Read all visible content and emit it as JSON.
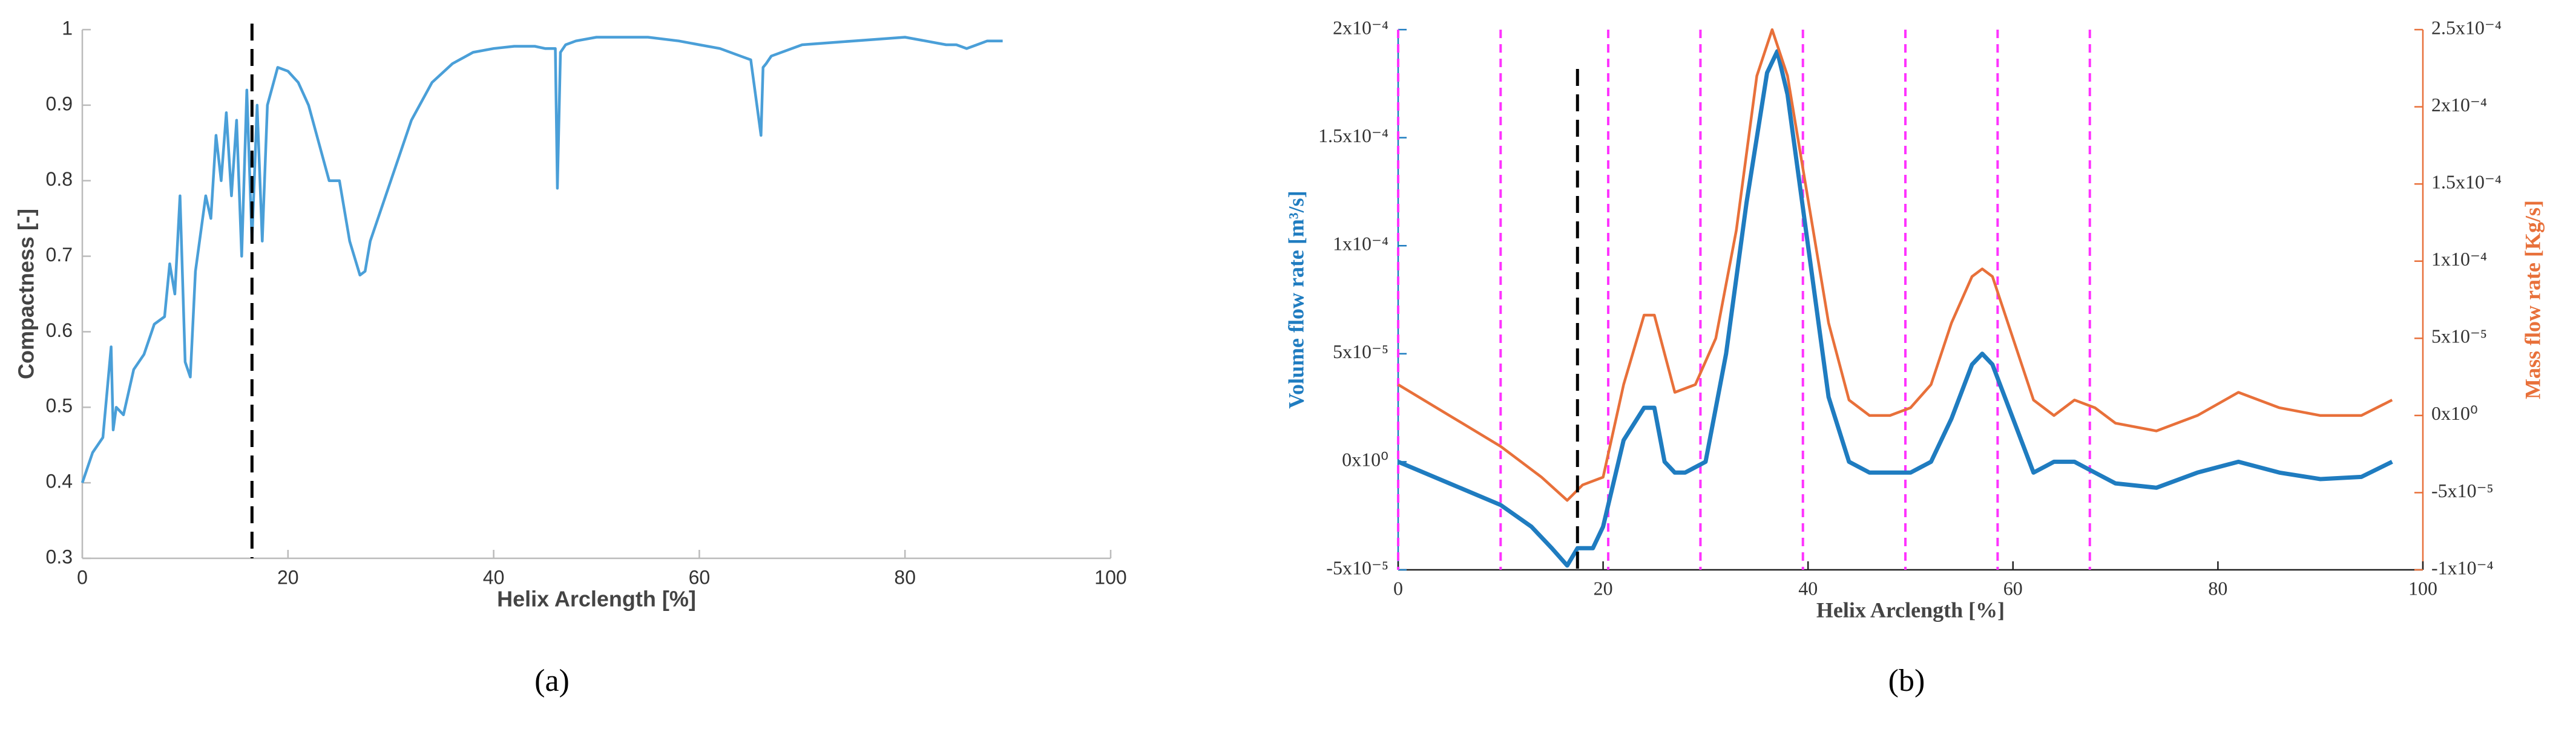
{
  "chart_data": [
    {
      "type": "line",
      "caption": "(a)",
      "xlabel": "Helix Arclength [%]",
      "ylabel": "Compactness [-]",
      "xlim": [
        0,
        100
      ],
      "xticks": [
        0,
        20,
        40,
        60,
        80,
        100
      ],
      "ylim": [
        0.3,
        1
      ],
      "yticks": [
        0.3,
        0.4,
        0.5,
        0.6,
        0.7,
        0.8,
        0.9,
        1
      ],
      "marker_line": 16.5,
      "marker_color": "#000000",
      "series": [
        {
          "color": "#4a9fd8",
          "x": [
            0,
            0.5,
            1,
            2,
            2.8,
            3,
            3.3,
            4,
            5,
            6,
            7,
            8,
            8.5,
            9,
            9.5,
            10,
            10.5,
            11,
            12,
            12.5,
            13,
            13.5,
            14,
            14.5,
            15,
            15.5,
            16,
            16.5,
            17,
            17.5,
            18,
            19,
            20,
            21,
            22,
            23,
            24,
            25,
            26,
            27,
            27.5,
            28,
            29,
            30,
            32,
            34,
            36,
            38,
            40,
            42,
            44,
            45,
            46,
            46.2,
            46.5,
            47,
            48,
            50,
            52,
            55,
            58,
            60,
            62,
            64,
            65,
            66,
            66.2,
            66.5,
            67,
            70,
            75,
            80,
            82,
            84,
            85,
            86,
            87,
            88,
            89.5
          ],
          "values": [
            0.4,
            0.42,
            0.44,
            0.46,
            0.58,
            0.47,
            0.5,
            0.49,
            0.55,
            0.57,
            0.61,
            0.62,
            0.69,
            0.65,
            0.78,
            0.56,
            0.54,
            0.68,
            0.78,
            0.75,
            0.86,
            0.8,
            0.89,
            0.78,
            0.88,
            0.7,
            0.92,
            0.72,
            0.9,
            0.72,
            0.9,
            0.95,
            0.945,
            0.93,
            0.9,
            0.85,
            0.8,
            0.8,
            0.72,
            0.675,
            0.68,
            0.72,
            0.76,
            0.8,
            0.88,
            0.93,
            0.955,
            0.97,
            0.975,
            0.978,
            0.978,
            0.975,
            0.975,
            0.79,
            0.97,
            0.98,
            0.985,
            0.99,
            0.99,
            0.99,
            0.985,
            0.98,
            0.975,
            0.965,
            0.96,
            0.86,
            0.95,
            0.955,
            0.965,
            0.98,
            0.985,
            0.99,
            0.985,
            0.98,
            0.98,
            0.975,
            0.98,
            0.985,
            0.985
          ]
        }
      ]
    },
    {
      "type": "line",
      "caption": "(b)",
      "xlabel": "Helix Arclength [%]",
      "ylabel": "Volume flow rate [m³/s]",
      "y2label": "Mass flow rate [Kg/s]",
      "xlim": [
        0,
        100
      ],
      "xticks": [
        0,
        20,
        40,
        60,
        80,
        100
      ],
      "ylim": [
        -5e-05,
        0.0002
      ],
      "yticks": [
        {
          "value": -5e-05,
          "label": "-5x10⁻⁵"
        },
        {
          "value": 0,
          "label": "0x10⁰"
        },
        {
          "value": 5e-05,
          "label": "5x10⁻⁵"
        },
        {
          "value": 0.0001,
          "label": "1x10⁻⁴"
        },
        {
          "value": 0.00015,
          "label": "1.5x10⁻⁴"
        },
        {
          "value": 0.0002,
          "label": "2x10⁻⁴"
        }
      ],
      "y2lim": [
        -0.0001,
        0.00025
      ],
      "y2ticks": [
        {
          "value": -0.0001,
          "label": "-1x10⁻⁴"
        },
        {
          "value": -5e-05,
          "label": "-5x10⁻⁵"
        },
        {
          "value": 0,
          "label": "0x10⁰"
        },
        {
          "value": 5e-05,
          "label": "5x10⁻⁵"
        },
        {
          "value": 0.0001,
          "label": "1x10⁻⁴"
        },
        {
          "value": 0.00015,
          "label": "1.5x10⁻⁴"
        },
        {
          "value": 0.0002,
          "label": "2x10⁻⁴"
        },
        {
          "value": 0.00025,
          "label": "2.5x10⁻⁴"
        }
      ],
      "vlines": [
        0,
        10,
        20.5,
        29.5,
        39.5,
        49.5,
        58.5,
        67.5
      ],
      "vline_color": "#ff33ff",
      "marker_line": 17.5,
      "marker_color": "#000000",
      "series": [
        {
          "color": "#1f7cc0",
          "x": [
            0,
            5,
            10,
            13,
            15,
            16.5,
            17.5,
            19,
            20,
            22,
            24,
            25,
            26,
            27,
            28,
            30,
            32,
            34,
            36,
            37,
            38,
            40,
            42,
            44,
            46,
            48,
            50,
            52,
            54,
            56,
            57,
            58,
            60,
            62,
            64,
            66,
            68,
            70,
            74,
            78,
            82,
            86,
            90,
            94,
            97
          ],
          "values": [
            0,
            -1e-05,
            -2e-05,
            -3e-05,
            -4e-05,
            -4.8e-05,
            -4e-05,
            -4e-05,
            -3e-05,
            1e-05,
            2.5e-05,
            2.5e-05,
            0,
            -5e-06,
            -5e-06,
            0,
            5e-05,
            0.00012,
            0.00018,
            0.00019,
            0.00017,
            0.0001,
            3e-05,
            0,
            -5e-06,
            -5e-06,
            -5e-06,
            0,
            2e-05,
            4.5e-05,
            5e-05,
            4.5e-05,
            2e-05,
            -5e-06,
            0,
            0,
            -5e-06,
            -1e-05,
            -1.2e-05,
            -5e-06,
            0,
            -5e-06,
            -8e-06,
            -7e-06,
            0
          ]
        },
        {
          "color": "#e8703a",
          "axis": "y2",
          "x": [
            0,
            5,
            10,
            14,
            16.5,
            18,
            20,
            22,
            24,
            25,
            27,
            29,
            31,
            33,
            35,
            36.5,
            38,
            40,
            42,
            44,
            46,
            48,
            50,
            52,
            54,
            56,
            57,
            58,
            60,
            62,
            64,
            66,
            68,
            70,
            74,
            78,
            82,
            86,
            90,
            94,
            97
          ],
          "values": [
            2e-05,
            0,
            -2e-05,
            -4e-05,
            -5.5e-05,
            -4.5e-05,
            -4e-05,
            2e-05,
            6.5e-05,
            6.5e-05,
            1.5e-05,
            2e-05,
            5e-05,
            0.00012,
            0.00022,
            0.00025,
            0.00022,
            0.00014,
            6e-05,
            1e-05,
            0,
            0,
            5e-06,
            2e-05,
            6e-05,
            9e-05,
            9.5e-05,
            9e-05,
            5e-05,
            1e-05,
            0,
            1e-05,
            5e-06,
            -5e-06,
            -1e-05,
            0,
            1.5e-05,
            5e-06,
            0,
            0,
            1e-05
          ]
        }
      ]
    }
  ]
}
